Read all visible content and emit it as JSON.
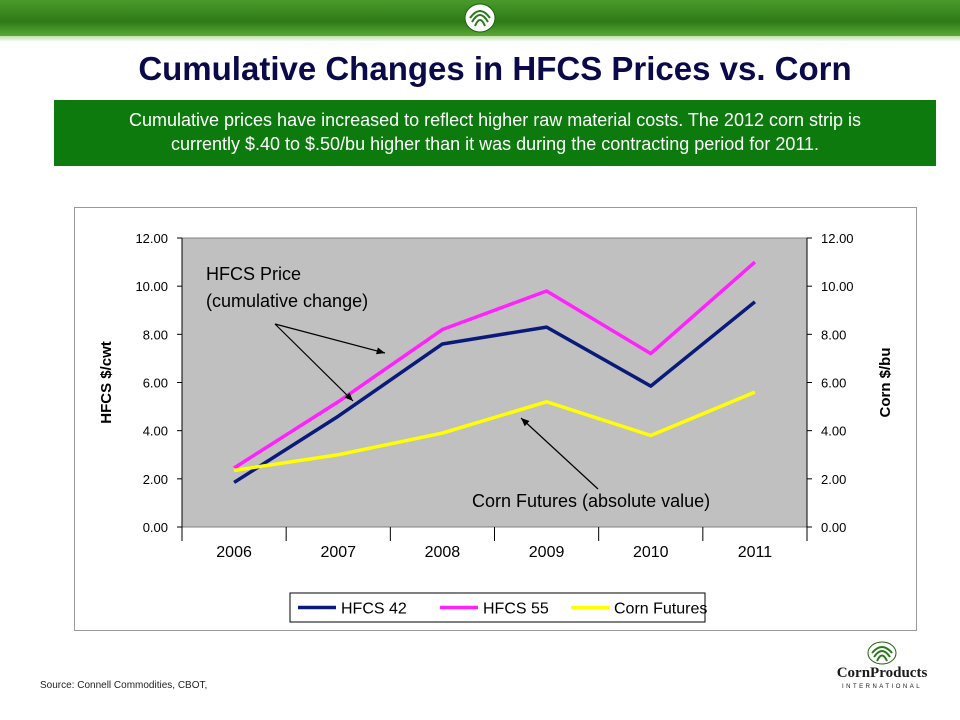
{
  "header": {
    "title": "Cumulative Changes in HFCS Prices vs. Corn",
    "subtitle_line1": "Cumulative prices have increased to reflect higher raw material costs.  The 2012 corn strip is",
    "subtitle_line2": "currently $.40 to $.50/bu higher than it was during the contracting period for 2011.",
    "accent_color": "#0d7a0d"
  },
  "chart_data": {
    "type": "line",
    "categories": [
      "2006",
      "2007",
      "2008",
      "2009",
      "2010",
      "2011"
    ],
    "ylabel_left": "HFCS $/cwt",
    "ylabel_right": "Corn $/bu",
    "ylim": [
      0,
      12
    ],
    "y_ticks": [
      "0.00",
      "2.00",
      "4.00",
      "6.00",
      "8.00",
      "10.00",
      "12.00"
    ],
    "grid": true,
    "plot_background": "#c0c0c0",
    "legend_position": "bottom",
    "series": [
      {
        "name": "HFCS 42",
        "color": "#0a1a7a",
        "values": [
          1.85,
          4.6,
          7.6,
          8.3,
          5.85,
          9.35
        ]
      },
      {
        "name": "HFCS 55",
        "color": "#ff22ff",
        "values": [
          2.45,
          5.2,
          8.2,
          9.8,
          7.2,
          11.0
        ]
      },
      {
        "name": "Corn Futures",
        "color": "#ffff00",
        "values": [
          2.35,
          3.0,
          3.9,
          5.2,
          3.8,
          5.6
        ]
      }
    ],
    "annotations": {
      "hfcs_line1": "HFCS Price",
      "hfcs_line2": "(cumulative change)",
      "corn": "Corn Futures (absolute value)"
    }
  },
  "footer": {
    "source": "Source: Connell Commodities, CBOT,",
    "brand_name": "CornProducts",
    "brand_sub": "INTERNATIONAL"
  }
}
